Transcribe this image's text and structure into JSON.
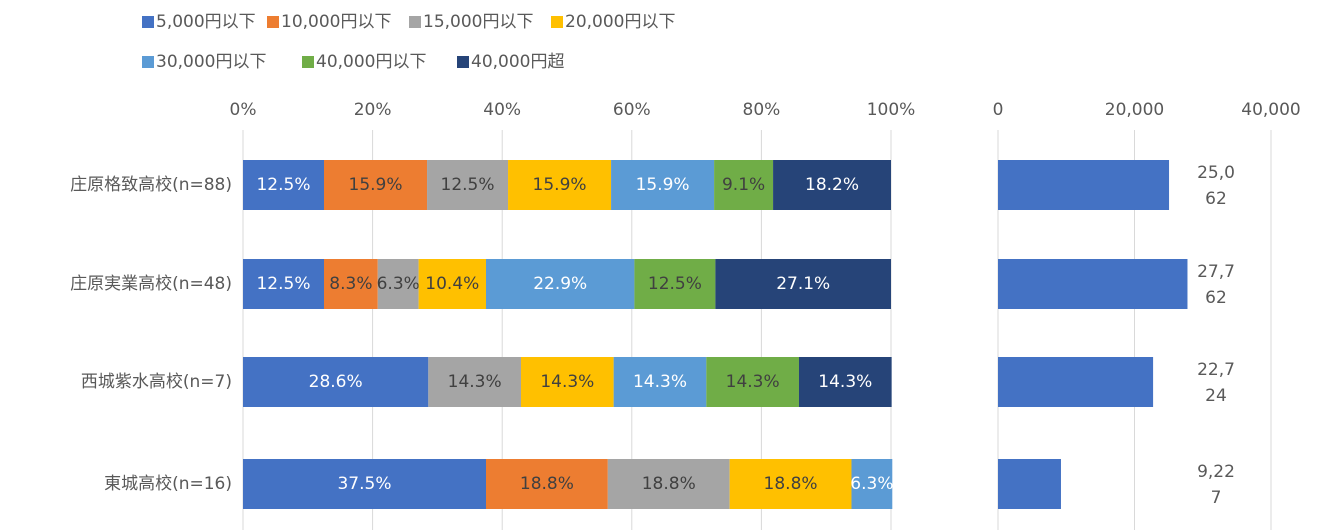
{
  "chart_data": [
    {
      "type": "stacked-bar-100",
      "categories": [
        "庄原格致高校(n=88)",
        "庄原実業高校(n=48)",
        "西城紫水高校(n=7)",
        "東城高校(n=16)"
      ],
      "series": [
        {
          "name": "5,000円以下",
          "color": "#4472c4",
          "label_color": "#ffffff",
          "values": [
            12.5,
            12.5,
            28.6,
            37.5
          ],
          "value_labels": [
            "12.5%",
            "12.5%",
            "28.6%",
            "37.5%"
          ]
        },
        {
          "name": "10,000円以下",
          "color": "#ed7d31",
          "label_color": "#404040",
          "values": [
            15.9,
            8.3,
            null,
            18.8
          ],
          "value_labels": [
            "15.9%",
            "8.3%",
            null,
            "18.8%"
          ]
        },
        {
          "name": "15,000円以下",
          "color": "#a5a5a5",
          "label_color": "#404040",
          "values": [
            12.5,
            6.3,
            14.3,
            18.8
          ],
          "value_labels": [
            "12.5%",
            "6.3%",
            "14.3%",
            "18.8%"
          ]
        },
        {
          "name": "20,000円以下",
          "color": "#ffc000",
          "label_color": "#404040",
          "values": [
            15.9,
            10.4,
            14.3,
            18.8
          ],
          "value_labels": [
            "15.9%",
            "10.4%",
            "14.3%",
            "18.8%"
          ]
        },
        {
          "name": "30,000円以下",
          "color": "#5b9bd5",
          "label_color": "#ffffff",
          "values": [
            15.9,
            22.9,
            14.3,
            6.3
          ],
          "value_labels": [
            "15.9%",
            "22.9%",
            "14.3%",
            "6.3%"
          ]
        },
        {
          "name": "40,000円以下",
          "color": "#70ad47",
          "label_color": "#404040",
          "values": [
            9.1,
            12.5,
            14.3,
            null
          ],
          "value_labels": [
            "9.1%",
            "12.5%",
            "14.3%",
            null
          ]
        },
        {
          "name": "40,000円超",
          "color": "#264478",
          "label_color": "#ffffff",
          "values": [
            18.2,
            27.1,
            14.3,
            null
          ],
          "value_labels": [
            "18.2%",
            "27.1%",
            "14.3%",
            null
          ]
        }
      ],
      "xlim": [
        0,
        100
      ],
      "xticks": [
        {
          "value": 0,
          "label": "0%"
        },
        {
          "value": 20,
          "label": "20%"
        },
        {
          "value": 40,
          "label": "40%"
        },
        {
          "value": 60,
          "label": "60%"
        },
        {
          "value": 80,
          "label": "80%"
        },
        {
          "value": 100,
          "label": "100%"
        }
      ],
      "grid": true,
      "legend": "top"
    },
    {
      "type": "hbar",
      "values": [
        25062,
        27762,
        22724,
        9227
      ],
      "value_labels": [
        "25,062",
        "27,762",
        "22,724",
        "9,227"
      ],
      "color": "#4472c4",
      "xlim": [
        0,
        40000
      ],
      "xticks": [
        0,
        {
          "value": 20000,
          "label": "20,000"
        },
        {
          "value": 40000,
          "label": "40,000"
        }
      ],
      "grid": true
    }
  ]
}
